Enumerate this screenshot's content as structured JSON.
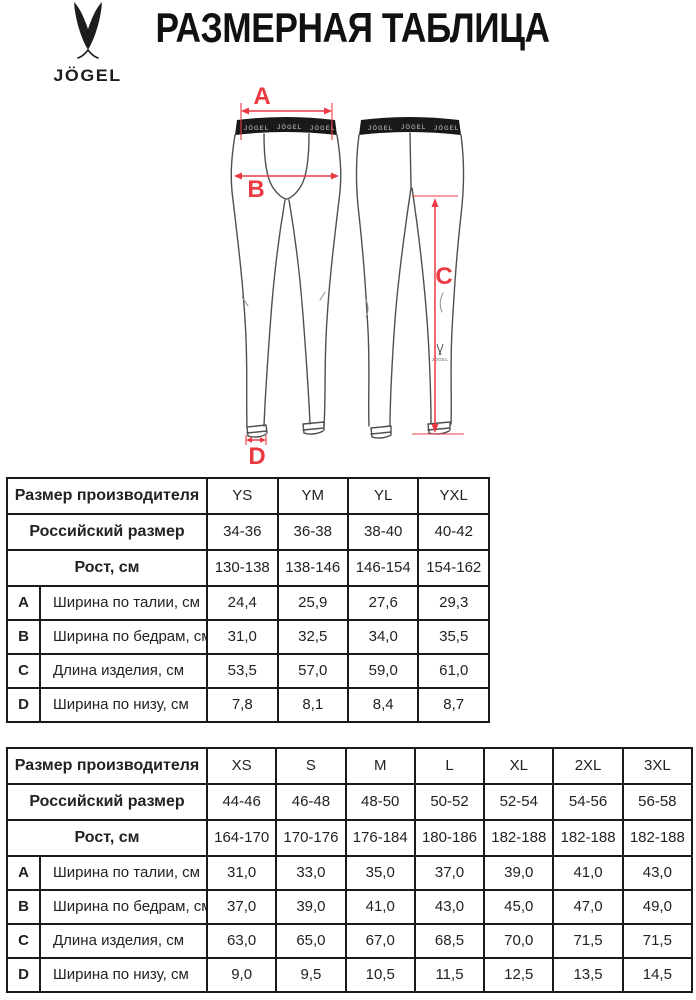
{
  "brand": {
    "name": "JÖGEL",
    "logo_icon": "jogel-v-icon"
  },
  "page_title": "РАЗМЕРНАЯ ТАБЛИЦА",
  "diagram": {
    "accent_color": "#ec3a42",
    "waistband_text": "JÖGEL",
    "leg_logo_text": "JÖGEL",
    "labels": {
      "a": "A",
      "b": "B",
      "c": "C",
      "d": "D"
    }
  },
  "tables": [
    {
      "name": "youth-sizes",
      "header_rows": [
        {
          "label": "Размер производителя",
          "values": [
            "YS",
            "YM",
            "YL",
            "YXL"
          ]
        },
        {
          "label": "Российский размер",
          "values": [
            "34-36",
            "36-38",
            "38-40",
            "40-42"
          ]
        },
        {
          "label": "Рост, см",
          "values": [
            "130-138",
            "138-146",
            "146-154",
            "154-162"
          ]
        }
      ],
      "measure_rows": [
        {
          "letter": "A",
          "label": "Ширина по талии, см",
          "values": [
            "24,4",
            "25,9",
            "27,6",
            "29,3"
          ]
        },
        {
          "letter": "B",
          "label": "Ширина по бедрам, см",
          "values": [
            "31,0",
            "32,5",
            "34,0",
            "35,5"
          ]
        },
        {
          "letter": "C",
          "label": "Длина изделия, см",
          "values": [
            "53,5",
            "57,0",
            "59,0",
            "61,0"
          ]
        },
        {
          "letter": "D",
          "label": "Ширина по низу, см",
          "values": [
            "7,8",
            "8,1",
            "8,4",
            "8,7"
          ]
        }
      ]
    },
    {
      "name": "adult-sizes",
      "header_rows": [
        {
          "label": "Размер производителя",
          "values": [
            "XS",
            "S",
            "M",
            "L",
            "XL",
            "2XL",
            "3XL"
          ]
        },
        {
          "label": "Российский размер",
          "values": [
            "44-46",
            "46-48",
            "48-50",
            "50-52",
            "52-54",
            "54-56",
            "56-58"
          ]
        },
        {
          "label": "Рост, см",
          "values": [
            "164-170",
            "170-176",
            "176-184",
            "180-186",
            "182-188",
            "182-188",
            "182-188"
          ]
        }
      ],
      "measure_rows": [
        {
          "letter": "A",
          "label": "Ширина по талии, см",
          "values": [
            "31,0",
            "33,0",
            "35,0",
            "37,0",
            "39,0",
            "41,0",
            "43,0"
          ]
        },
        {
          "letter": "B",
          "label": "Ширина по бедрам, см",
          "values": [
            "37,0",
            "39,0",
            "41,0",
            "43,0",
            "45,0",
            "47,0",
            "49,0"
          ]
        },
        {
          "letter": "C",
          "label": "Длина изделия, см",
          "values": [
            "63,0",
            "65,0",
            "67,0",
            "68,5",
            "70,0",
            "71,5",
            "71,5"
          ]
        },
        {
          "letter": "D",
          "label": "Ширина по низу, см",
          "values": [
            "9,0",
            "9,5",
            "10,5",
            "11,5",
            "12,5",
            "13,5",
            "14,5"
          ]
        }
      ]
    }
  ]
}
